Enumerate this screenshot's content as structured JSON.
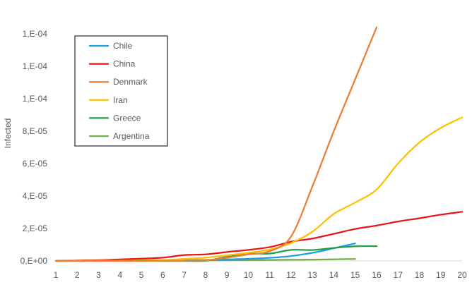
{
  "chart_data": {
    "type": "line",
    "title": "",
    "xlabel": "",
    "ylabel": "Infected",
    "x": [
      1,
      2,
      3,
      4,
      5,
      6,
      7,
      8,
      9,
      10,
      11,
      12,
      13,
      14,
      15,
      16,
      17,
      18,
      19,
      20
    ],
    "xlim": [
      1,
      20
    ],
    "ylim": [
      0,
      0.00014
    ],
    "y_tick_values": [
      0,
      2e-05,
      4e-05,
      6e-05,
      8e-05,
      0.0001,
      0.00012,
      0.00014
    ],
    "y_tick_labels": [
      "0,E+00",
      "2,E-05",
      "4,E-05",
      "6,E-05",
      "8,E-05",
      "1,E-04",
      "1,E-04",
      "1,E-04"
    ],
    "x_tick_labels": [
      "1",
      "2",
      "3",
      "4",
      "5",
      "6",
      "7",
      "8",
      "9",
      "10",
      "11",
      "12",
      "13",
      "14",
      "15",
      "16",
      "17",
      "18",
      "19",
      "20"
    ],
    "grid": false,
    "legend_position": "top-left",
    "series": [
      {
        "name": "Chile",
        "color": "#1ba1e2",
        "values": [
          0,
          0,
          0,
          0,
          1e-07,
          2e-07,
          4e-07,
          6e-07,
          9e-07,
          1.3e-06,
          1.9e-06,
          3e-06,
          5e-06,
          7.8e-06,
          1.08e-05,
          null,
          null,
          null,
          null,
          null
        ]
      },
      {
        "name": "China",
        "color": "#e81416",
        "values": [
          0,
          2e-07,
          4e-07,
          9e-07,
          1.4e-06,
          2e-06,
          3.6e-06,
          4e-06,
          5.5e-06,
          6.8e-06,
          8.5e-06,
          1.18e-05,
          1.38e-05,
          1.67e-05,
          1.97e-05,
          2.18e-05,
          2.43e-05,
          2.63e-05,
          2.85e-05,
          3.03e-05
        ]
      },
      {
        "name": "Denmark",
        "color": "#ed7d31",
        "values": [
          0,
          0,
          0,
          0,
          0,
          1e-07,
          2e-07,
          4e-07,
          2e-06,
          4e-06,
          6e-06,
          1.5e-05,
          4.6e-05,
          8e-05,
          0.000112,
          0.000144,
          null,
          null,
          null,
          null
        ]
      },
      {
        "name": "Iran",
        "color": "#ffc000",
        "values": [
          0,
          0,
          0,
          1e-07,
          2e-07,
          5e-07,
          1.2e-06,
          2e-06,
          3.5e-06,
          5e-06,
          7e-06,
          1.1e-05,
          1.8e-05,
          2.9e-05,
          3.6e-05,
          4.4e-05,
          6e-05,
          7.3e-05,
          8.2e-05,
          8.85e-05
        ]
      },
      {
        "name": "Greece",
        "color": "#22a049",
        "values": [
          0,
          0,
          0,
          0,
          0,
          0,
          0,
          1e-07,
          2.5e-06,
          4.5e-06,
          4.5e-06,
          6.8e-06,
          6.7e-06,
          8e-06,
          9e-06,
          9.1e-06,
          null,
          null,
          null,
          null
        ]
      },
      {
        "name": "Argentina",
        "color": "#70ad47",
        "values": [
          0,
          2e-07,
          3e-07,
          3e-07,
          4e-07,
          4e-07,
          4e-07,
          4e-07,
          4e-07,
          5e-07,
          6e-07,
          7e-07,
          8e-07,
          1e-06,
          1.2e-06,
          null,
          null,
          null,
          null,
          null
        ]
      }
    ]
  }
}
